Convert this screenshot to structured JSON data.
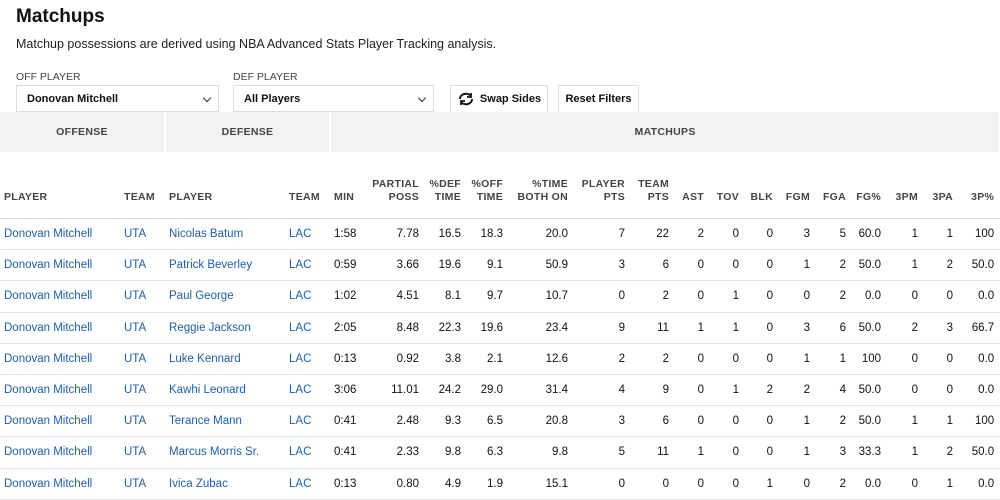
{
  "header": {
    "title": "Matchups",
    "subtitle": "Matchup possessions are derived using NBA Advanced Stats Player Tracking analysis."
  },
  "filters": {
    "off_label": "OFF PLAYER",
    "off_value": "Donovan Mitchell",
    "def_label": "DEF PLAYER",
    "def_value": "All Players",
    "swap": "Swap Sides",
    "reset": "Reset Filters"
  },
  "table": {
    "groups": [
      "OFFENSE",
      "DEFENSE",
      "MATCHUPS"
    ],
    "columns": [
      "PLAYER",
      "TEAM",
      "PLAYER",
      "TEAM",
      "MIN",
      "PARTIAL POSS",
      "%DEF TIME",
      "%OFF TIME",
      "%TIME BOTH ON",
      "PLAYER PTS",
      "TEAM PTS",
      "AST",
      "TOV",
      "BLK",
      "FGM",
      "FGA",
      "FG%",
      "3PM",
      "3PA",
      "3P%"
    ],
    "rows": [
      [
        "Donovan Mitchell",
        "UTA",
        "Nicolas Batum",
        "LAC",
        "1:58",
        "7.78",
        "16.5",
        "18.3",
        "20.0",
        "7",
        "22",
        "2",
        "0",
        "0",
        "3",
        "5",
        "60.0",
        "1",
        "1",
        "100"
      ],
      [
        "Donovan Mitchell",
        "UTA",
        "Patrick Beverley",
        "LAC",
        "0:59",
        "3.66",
        "19.6",
        "9.1",
        "50.9",
        "3",
        "6",
        "0",
        "0",
        "0",
        "1",
        "2",
        "50.0",
        "1",
        "2",
        "50.0"
      ],
      [
        "Donovan Mitchell",
        "UTA",
        "Paul George",
        "LAC",
        "1:02",
        "4.51",
        "8.1",
        "9.7",
        "10.7",
        "0",
        "2",
        "0",
        "1",
        "0",
        "0",
        "2",
        "0.0",
        "0",
        "0",
        "0.0"
      ],
      [
        "Donovan Mitchell",
        "UTA",
        "Reggie Jackson",
        "LAC",
        "2:05",
        "8.48",
        "22.3",
        "19.6",
        "23.4",
        "9",
        "11",
        "1",
        "1",
        "0",
        "3",
        "6",
        "50.0",
        "2",
        "3",
        "66.7"
      ],
      [
        "Donovan Mitchell",
        "UTA",
        "Luke Kennard",
        "LAC",
        "0:13",
        "0.92",
        "3.8",
        "2.1",
        "12.6",
        "2",
        "2",
        "0",
        "0",
        "0",
        "1",
        "1",
        "100",
        "0",
        "0",
        "0.0"
      ],
      [
        "Donovan Mitchell",
        "UTA",
        "Kawhi Leonard",
        "LAC",
        "3:06",
        "11.01",
        "24.2",
        "29.0",
        "31.4",
        "4",
        "9",
        "0",
        "1",
        "2",
        "2",
        "4",
        "50.0",
        "0",
        "0",
        "0.0"
      ],
      [
        "Donovan Mitchell",
        "UTA",
        "Terance Mann",
        "LAC",
        "0:41",
        "2.48",
        "9.3",
        "6.5",
        "20.8",
        "3",
        "6",
        "0",
        "0",
        "0",
        "1",
        "2",
        "50.0",
        "1",
        "1",
        "100"
      ],
      [
        "Donovan Mitchell",
        "UTA",
        "Marcus Morris Sr.",
        "LAC",
        "0:41",
        "2.33",
        "9.8",
        "6.3",
        "9.8",
        "5",
        "11",
        "1",
        "0",
        "0",
        "1",
        "3",
        "33.3",
        "1",
        "2",
        "50.0"
      ],
      [
        "Donovan Mitchell",
        "UTA",
        "Ivica Zubac",
        "LAC",
        "0:13",
        "0.80",
        "4.9",
        "1.9",
        "15.1",
        "0",
        "0",
        "0",
        "0",
        "1",
        "0",
        "2",
        "0.0",
        "0",
        "1",
        "0.0"
      ]
    ]
  }
}
